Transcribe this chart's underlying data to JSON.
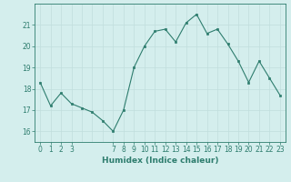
{
  "x": [
    0,
    1,
    2,
    3,
    4,
    5,
    6,
    7,
    8,
    9,
    10,
    11,
    12,
    13,
    14,
    15,
    16,
    17,
    18,
    19,
    20,
    21,
    22,
    23
  ],
  "y": [
    18.3,
    17.2,
    17.8,
    17.3,
    17.1,
    16.9,
    16.5,
    16.0,
    17.0,
    19.0,
    20.0,
    20.7,
    20.8,
    20.2,
    21.1,
    21.5,
    20.6,
    20.8,
    20.1,
    19.3,
    18.3,
    19.3,
    18.5,
    17.7
  ],
  "line_color": "#2e7d6e",
  "marker_color": "#2e7d6e",
  "bg_color": "#d4eeed",
  "grid_color_major": "#c0dedd",
  "grid_color_minor": "#d0e8e7",
  "xlabel": "Humidex (Indice chaleur)",
  "ylim": [
    15.5,
    22.0
  ],
  "xlim": [
    -0.5,
    23.5
  ],
  "yticks": [
    16,
    17,
    18,
    19,
    20,
    21
  ],
  "xticks": [
    0,
    1,
    2,
    3,
    7,
    8,
    9,
    10,
    11,
    12,
    13,
    14,
    15,
    16,
    17,
    18,
    19,
    20,
    21,
    22,
    23
  ],
  "font_color": "#2e7d6e",
  "xlabel_fontsize": 6.5,
  "tick_fontsize": 5.5
}
